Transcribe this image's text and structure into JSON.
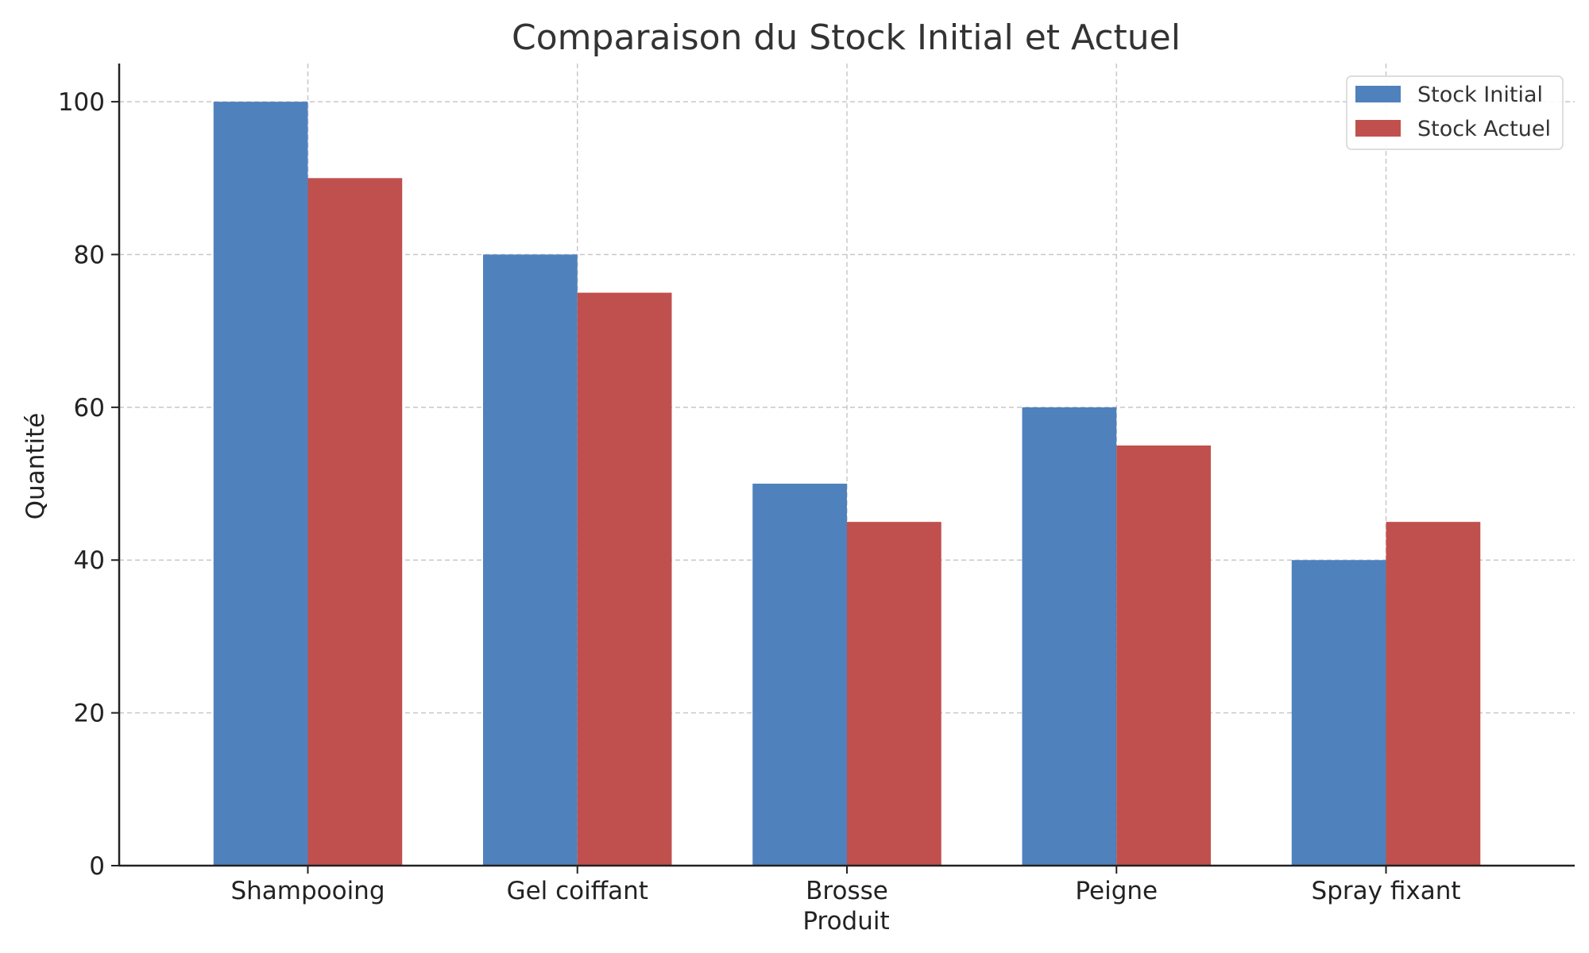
{
  "chart_data": {
    "type": "bar",
    "title": "Comparaison du Stock Initial et Actuel",
    "xlabel": "Produit",
    "ylabel": "Quantité",
    "categories": [
      "Shampooing",
      "Gel coiffant",
      "Brosse",
      "Peigne",
      "Spray fixant"
    ],
    "series": [
      {
        "name": "Stock Initial",
        "color": "#4f81bd",
        "values": [
          100,
          80,
          50,
          60,
          40
        ]
      },
      {
        "name": "Stock Actuel",
        "color": "#c0504d",
        "values": [
          90,
          75,
          45,
          55,
          45
        ]
      }
    ],
    "ylim": [
      0,
      105
    ],
    "yticks": [
      0,
      20,
      40,
      60,
      80,
      100
    ],
    "grid": true,
    "legend_position": "top-right"
  }
}
